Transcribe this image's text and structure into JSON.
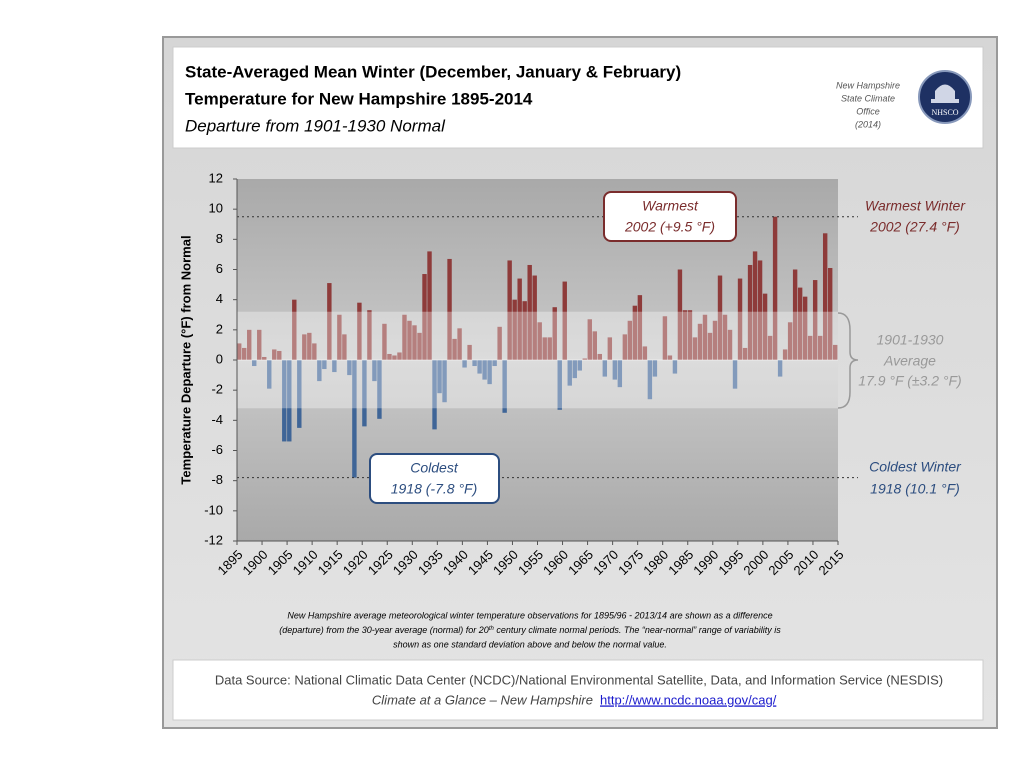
{
  "chart_data": {
    "type": "bar",
    "title": [
      "State-Averaged Mean Winter (December, January & February)",
      "Temperature for New Hampshire 1895-2014"
    ],
    "subtitle": "Departure from 1901-1930 Normal",
    "office": [
      "New Hampshire",
      "State Climate",
      "Office",
      "(2014)"
    ],
    "logo": "NHSCO",
    "y_label": "Temperature Departure (°F) from Normal",
    "x": [
      1895,
      1896,
      1897,
      1898,
      1899,
      1900,
      1901,
      1902,
      1903,
      1904,
      1905,
      1906,
      1907,
      1908,
      1909,
      1910,
      1911,
      1912,
      1913,
      1914,
      1915,
      1916,
      1917,
      1918,
      1919,
      1920,
      1921,
      1922,
      1923,
      1924,
      1925,
      1926,
      1927,
      1928,
      1929,
      1930,
      1931,
      1932,
      1933,
      1934,
      1935,
      1936,
      1937,
      1938,
      1939,
      1940,
      1941,
      1942,
      1943,
      1944,
      1945,
      1946,
      1947,
      1948,
      1949,
      1950,
      1951,
      1952,
      1953,
      1954,
      1955,
      1956,
      1957,
      1958,
      1959,
      1960,
      1961,
      1962,
      1963,
      1964,
      1965,
      1966,
      1967,
      1968,
      1969,
      1970,
      1971,
      1972,
      1973,
      1974,
      1975,
      1976,
      1977,
      1978,
      1979,
      1980,
      1981,
      1982,
      1983,
      1984,
      1985,
      1986,
      1987,
      1988,
      1989,
      1990,
      1991,
      1992,
      1993,
      1994,
      1995,
      1996,
      1997,
      1998,
      1999,
      2000,
      2001,
      2002,
      2003,
      2004,
      2005,
      2006,
      2007,
      2008,
      2009,
      2010,
      2011,
      2012,
      2013,
      2014
    ],
    "values": [
      1.1,
      0.8,
      2.0,
      -0.4,
      2.0,
      0.2,
      -1.9,
      0.7,
      0.6,
      -5.4,
      -5.4,
      4.0,
      -4.5,
      1.7,
      1.8,
      1.1,
      -1.4,
      -0.6,
      5.1,
      -0.8,
      3.0,
      1.7,
      -1.0,
      -7.8,
      3.8,
      -4.4,
      3.3,
      -1.4,
      -3.9,
      2.4,
      0.4,
      0.3,
      0.5,
      3.0,
      2.6,
      2.3,
      1.8,
      5.7,
      7.2,
      -4.6,
      -2.2,
      -2.8,
      6.7,
      1.4,
      2.1,
      -0.5,
      1.0,
      -0.4,
      -0.9,
      -1.3,
      -1.6,
      -0.4,
      2.2,
      -3.5,
      6.6,
      4.0,
      5.4,
      3.9,
      6.3,
      5.6,
      2.5,
      1.5,
      1.5,
      3.5,
      -3.3,
      5.2,
      -1.7,
      -1.2,
      -0.7,
      0.1,
      2.7,
      1.9,
      0.4,
      -1.1,
      1.5,
      -1.3,
      -1.8,
      1.7,
      2.6,
      3.6,
      4.3,
      0.9,
      -2.6,
      -1.1,
      0.0,
      2.9,
      0.3,
      -0.9,
      6.0,
      3.3,
      3.3,
      1.5,
      2.4,
      3.0,
      1.8,
      2.6,
      5.6,
      3.0,
      2.0,
      -1.9,
      5.4,
      0.8,
      6.3,
      7.2,
      6.6,
      4.4,
      1.6,
      9.5,
      -1.1,
      0.7,
      2.5,
      6.0,
      4.8,
      4.2,
      1.6,
      5.3,
      1.6,
      8.4,
      6.1,
      1.0
    ],
    "colors": {
      "warm": "#8e3b3a",
      "cold": "#3f6597"
    },
    "xlim": [
      1895,
      2015
    ],
    "xticks": [
      1895,
      1900,
      1905,
      1910,
      1915,
      1920,
      1925,
      1930,
      1935,
      1940,
      1945,
      1950,
      1955,
      1960,
      1965,
      1970,
      1975,
      1980,
      1985,
      1990,
      1995,
      2000,
      2005,
      2010,
      2015
    ],
    "ylim": [
      -12,
      12
    ],
    "yticks": [
      -12,
      -10,
      -8,
      -6,
      -4,
      -2,
      0,
      2,
      4,
      6,
      8,
      10,
      12
    ],
    "normal_band": {
      "low": -3.2,
      "high": 3.2
    },
    "warmest_box": [
      "Warmest",
      "2002 (+9.5 °F)"
    ],
    "coldest_box": [
      "Coldest",
      "1918 (-7.8 °F)"
    ],
    "warmest_winter": [
      "Warmest Winter",
      "2002 (27.4 °F)"
    ],
    "average": [
      "1901-1930",
      "Average",
      "17.9 °F (±3.2 °F)"
    ],
    "coldest_winter": [
      "Coldest Winter",
      "1918 (10.1 °F)"
    ],
    "footnote": [
      "New Hampshire average meteorological winter temperature observations for 1895/96 - 2013/14 are shown as a difference",
      [
        "(departure) from the 30-year average (normal) for 20",
        "th",
        " century climate normal periods. The “near-normal” range of variability is"
      ],
      "shown as one standard deviation above and below the normal value."
    ],
    "source": "Data Source: National Climatic Data Center (NCDC)/National Environmental Satellite, Data, and Information Service (NESDIS)",
    "source_line2": "Climate at a Glance – New Hampshire",
    "link": "http://www.ncdc.noaa.gov/cag/"
  }
}
